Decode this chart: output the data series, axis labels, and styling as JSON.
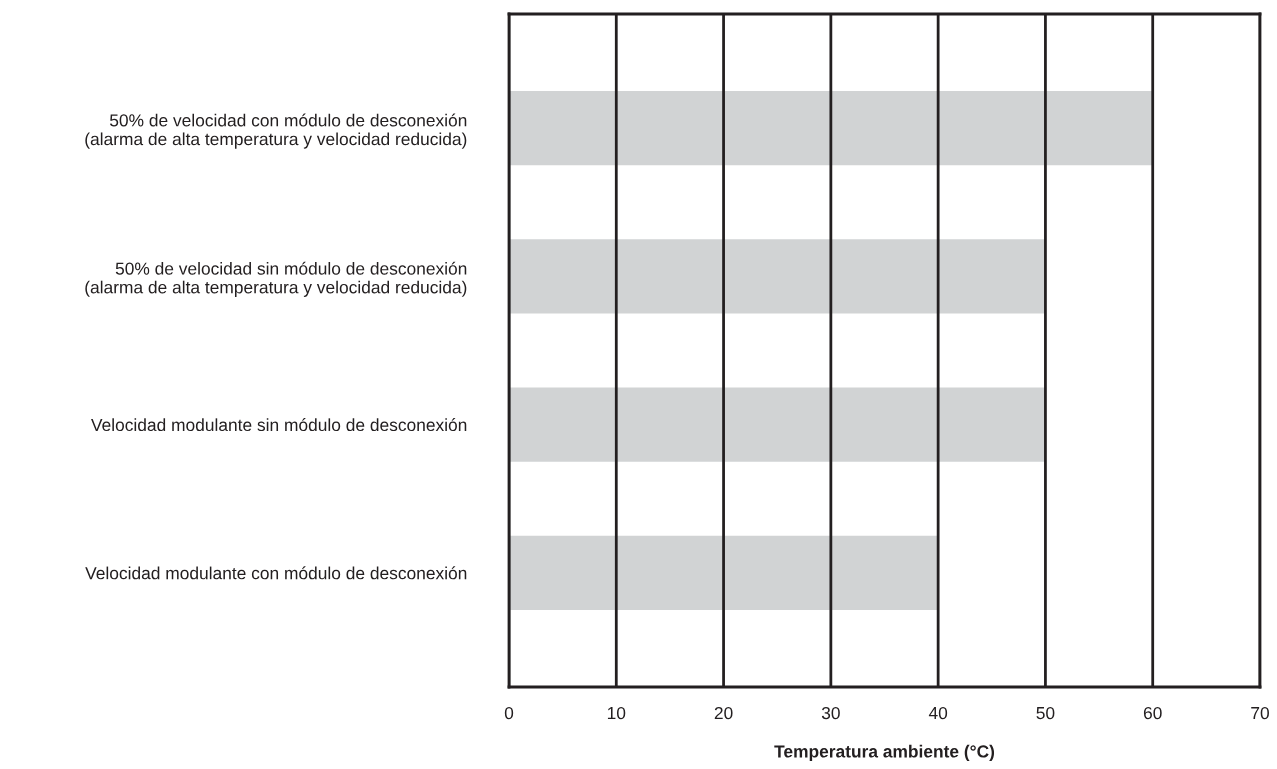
{
  "chart_data": {
    "type": "bar",
    "orientation": "horizontal",
    "xlabel": "Temperatura ambiente (°C)",
    "categories": [
      "50% de velocidad con módulo de desconexión\n(alarma de alta temperatura y velocidad reducida)",
      "50% de velocidad sin módulo de desconexión\n(alarma de alta temperatura y velocidad reducida)",
      "Velocidad modulante sin módulo de desconexión",
      "Velocidad modulante con módulo de desconexión"
    ],
    "values": [
      60,
      50,
      50,
      40
    ],
    "color": "#d1d3d4",
    "xlim": [
      0,
      70
    ],
    "xticks": [
      0,
      10,
      20,
      30,
      40,
      50,
      60,
      70
    ],
    "grid": "x"
  }
}
